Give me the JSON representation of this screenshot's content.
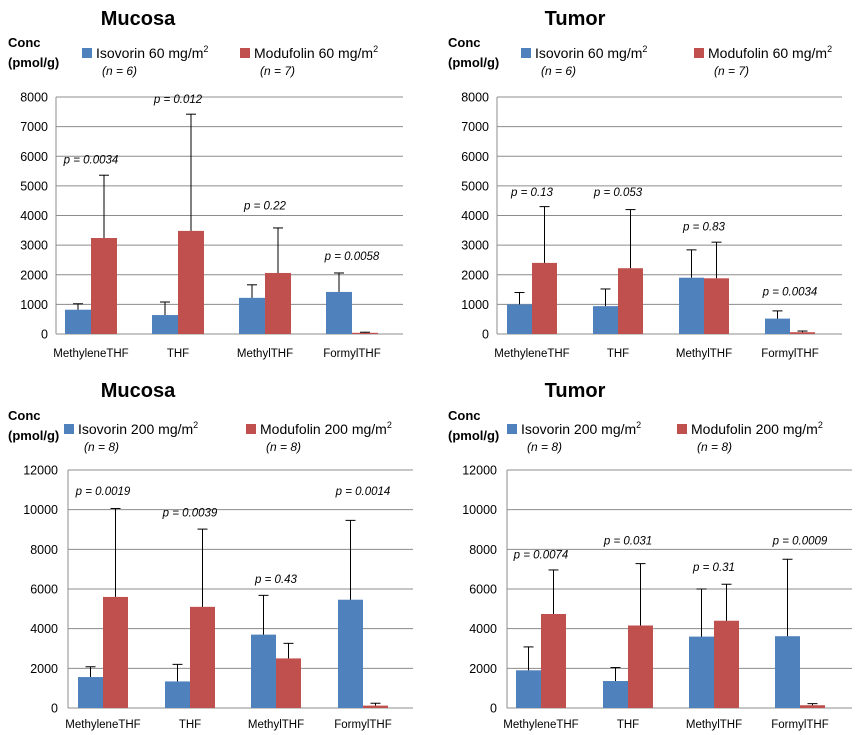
{
  "colors": {
    "isovorin": "#4f81bd",
    "modufolin": "#c0504d",
    "grid": "#8c8c8c"
  },
  "chart_data": [
    {
      "type": "bar",
      "title": "Mucosa",
      "ylabel": [
        "Conc",
        "(pmol/g)"
      ],
      "ylim": [
        0,
        8000
      ],
      "yticks": [
        0,
        1000,
        2000,
        3000,
        4000,
        5000,
        6000,
        7000,
        8000
      ],
      "categories": [
        "MethyleneTHF",
        "THF",
        "MethylTHF",
        "FormylTHF"
      ],
      "series": [
        {
          "name": "Isovorin 60 mg/m",
          "sup": "2",
          "n": "(n = 6)",
          "values": [
            820,
            640,
            1220,
            1420
          ],
          "error_upper": [
            1020,
            1080,
            1660,
            2060
          ]
        },
        {
          "name": "Modufolin 60 mg/m",
          "sup": "2",
          "n": "(n = 7)",
          "values": [
            3240,
            3480,
            2060,
            40
          ],
          "error_upper": [
            5360,
            7420,
            3580,
            60
          ]
        }
      ],
      "annotations": [
        {
          "category": "MethyleneTHF",
          "text": "p = 0.0034",
          "y": 5750
        },
        {
          "category": "THF",
          "text": "p = 0.012",
          "y": 7800
        },
        {
          "category": "MethylTHF",
          "text": "p = 0.22",
          "y": 4200
        },
        {
          "category": "FormylTHF",
          "text": "p = 0.0058",
          "y": 2500
        }
      ]
    },
    {
      "type": "bar",
      "title": "Tumor",
      "ylabel": [
        "Conc",
        "(pmol/g)"
      ],
      "ylim": [
        0,
        8000
      ],
      "yticks": [
        0,
        1000,
        2000,
        3000,
        4000,
        5000,
        6000,
        7000,
        8000
      ],
      "categories": [
        "MethyleneTHF",
        "THF",
        "MethylTHF",
        "FormylTHF"
      ],
      "series": [
        {
          "name": "Isovorin 60 mg/m",
          "sup": "2",
          "n": "(n = 6)",
          "values": [
            1000,
            940,
            1900,
            520
          ],
          "error_upper": [
            1400,
            1520,
            2840,
            780
          ]
        },
        {
          "name": "Modufolin 60 mg/m",
          "sup": "2",
          "n": "(n = 7)",
          "values": [
            2400,
            2220,
            1880,
            60
          ],
          "error_upper": [
            4300,
            4200,
            3100,
            100
          ]
        }
      ],
      "annotations": [
        {
          "category": "MethyleneTHF",
          "text": "p = 0.13",
          "y": 4650
        },
        {
          "category": "THF",
          "text": "p = 0.053",
          "y": 4650
        },
        {
          "category": "MethylTHF",
          "text": "p = 0.83",
          "y": 3500
        },
        {
          "category": "FormylTHF",
          "text": "p = 0.0034",
          "y": 1300
        }
      ]
    },
    {
      "type": "bar",
      "title": "Mucosa",
      "ylabel": [
        "Conc",
        "(pmol/g)"
      ],
      "ylim": [
        0,
        12000
      ],
      "yticks": [
        0,
        2000,
        4000,
        6000,
        8000,
        10000,
        12000
      ],
      "categories": [
        "MethyleneTHF",
        "THF",
        "MethylTHF",
        "FormylTHF"
      ],
      "series": [
        {
          "name": "Isovorin 200 mg/m",
          "sup": "2",
          "n": "(n = 8)",
          "values": [
            1560,
            1340,
            3700,
            5460
          ],
          "error_upper": [
            2080,
            2200,
            5680,
            9460
          ]
        },
        {
          "name": "Modufolin 200 mg/m",
          "sup": "2",
          "n": "(n = 8)",
          "values": [
            5600,
            5100,
            2500,
            120
          ],
          "error_upper": [
            10060,
            9020,
            3260,
            240
          ]
        }
      ],
      "annotations": [
        {
          "category": "MethyleneTHF",
          "text": "p = 0.0019",
          "y": 10750
        },
        {
          "category": "THF",
          "text": "p = 0.0039",
          "y": 9650
        },
        {
          "category": "MethylTHF",
          "text": "p = 0.43",
          "y": 6300
        },
        {
          "category": "FormylTHF",
          "text": "p = 0.0014",
          "y": 10750
        }
      ]
    },
    {
      "type": "bar",
      "title": "Tumor",
      "ylabel": [
        "Conc",
        "(pmol/g)"
      ],
      "ylim": [
        0,
        12000
      ],
      "yticks": [
        0,
        2000,
        4000,
        6000,
        8000,
        10000,
        12000
      ],
      "categories": [
        "MethyleneTHF",
        "THF",
        "MethylTHF",
        "FormylTHF"
      ],
      "series": [
        {
          "name": "Isovorin 200 mg/m",
          "sup": "2",
          "n": "(n = 8)",
          "values": [
            1900,
            1360,
            3600,
            3620
          ],
          "error_upper": [
            3080,
            2040,
            6000,
            7500
          ]
        },
        {
          "name": "Modufolin 200 mg/m",
          "sup": "2",
          "n": "(n = 8)",
          "values": [
            4740,
            4160,
            4400,
            140
          ],
          "error_upper": [
            6960,
            7280,
            6240,
            220
          ]
        }
      ],
      "annotations": [
        {
          "category": "MethyleneTHF",
          "text": "p = 0.0074",
          "y": 7550
        },
        {
          "category": "THF",
          "text": "p = 0.031",
          "y": 8250
        },
        {
          "category": "MethylTHF",
          "text": "p = 0.31",
          "y": 6900
        },
        {
          "category": "FormylTHF",
          "text": "p = 0.0009",
          "y": 8250
        }
      ]
    }
  ]
}
